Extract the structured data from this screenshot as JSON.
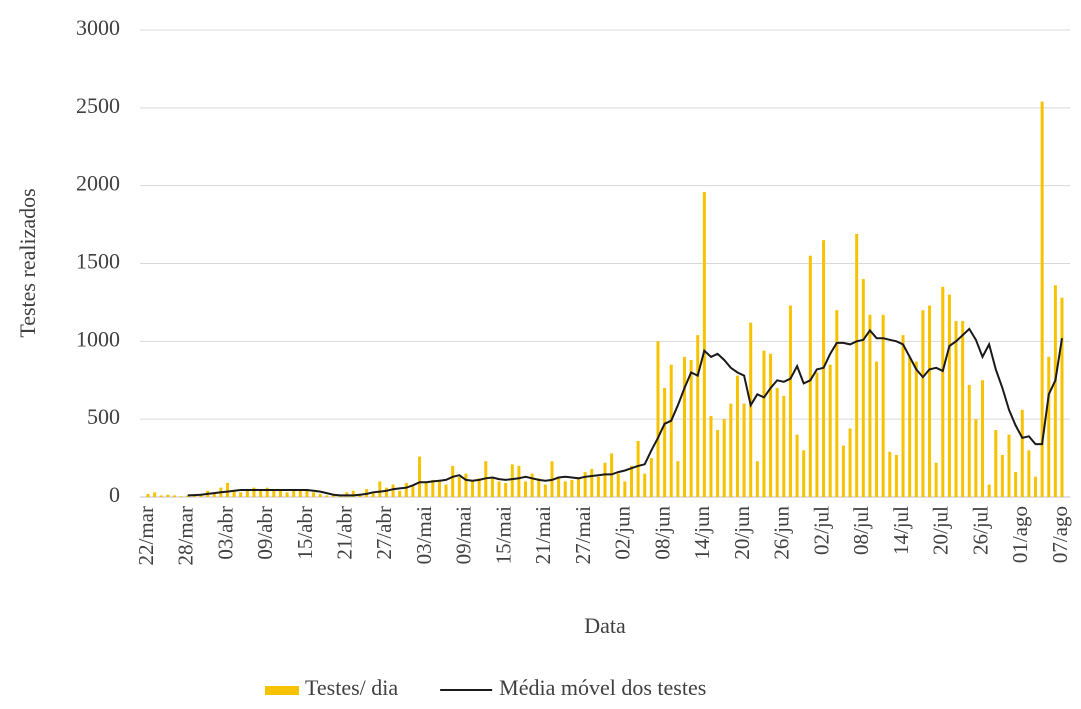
{
  "chart_data": {
    "type": "bar",
    "y_label": "Testes realizados",
    "x_label": "Data",
    "categories": [
      "22/mar",
      null,
      null,
      null,
      null,
      null,
      "28/mar",
      null,
      null,
      null,
      null,
      null,
      "03/abr",
      null,
      null,
      null,
      null,
      null,
      "09/abr",
      null,
      null,
      null,
      null,
      null,
      "15/abr",
      null,
      null,
      null,
      null,
      null,
      "21/abr",
      null,
      null,
      null,
      null,
      null,
      "27/abr",
      null,
      null,
      null,
      null,
      null,
      "03/mai",
      null,
      null,
      null,
      null,
      null,
      "09/mai",
      null,
      null,
      null,
      null,
      null,
      "15/mai",
      null,
      null,
      null,
      null,
      null,
      "21/mai",
      null,
      null,
      null,
      null,
      null,
      "27/mai",
      null,
      null,
      null,
      null,
      null,
      "02/jun",
      null,
      null,
      null,
      null,
      null,
      "08/jun",
      null,
      null,
      null,
      null,
      null,
      "14/jun",
      null,
      null,
      null,
      null,
      null,
      "20/jun",
      null,
      null,
      null,
      null,
      null,
      "26/jun",
      null,
      null,
      null,
      null,
      null,
      "02/jul",
      null,
      null,
      null,
      null,
      null,
      "08/jul",
      null,
      null,
      null,
      null,
      null,
      "14/jul",
      null,
      null,
      null,
      null,
      null,
      "20/jul",
      null,
      null,
      null,
      null,
      null,
      "26/jul",
      null,
      null,
      null,
      null,
      null,
      "01/ago",
      null,
      null,
      null,
      null,
      null,
      "07/ago"
    ],
    "series": [
      {
        "name": "Testes/ dia",
        "type": "bar",
        "color": "#f7c200",
        "values": [
          20,
          30,
          10,
          15,
          10,
          5,
          10,
          15,
          20,
          40,
          30,
          60,
          90,
          40,
          30,
          50,
          60,
          40,
          60,
          50,
          40,
          30,
          50,
          40,
          40,
          30,
          20,
          10,
          10,
          5,
          30,
          40,
          20,
          50,
          30,
          100,
          60,
          80,
          40,
          90,
          70,
          260,
          90,
          110,
          100,
          80,
          200,
          130,
          150,
          100,
          120,
          230,
          130,
          100,
          90,
          210,
          200,
          100,
          150,
          120,
          80,
          230,
          130,
          100,
          110,
          120,
          160,
          180,
          130,
          220,
          280,
          150,
          100,
          200,
          360,
          150,
          250,
          1000,
          700,
          850,
          230,
          900,
          880,
          1040,
          1960,
          520,
          430,
          500,
          600,
          780,
          600,
          1120,
          230,
          940,
          920,
          700,
          650,
          1230,
          400,
          300,
          1550,
          800,
          1650,
          850,
          1200,
          330,
          440,
          1690,
          1400,
          1170,
          870,
          1170,
          290,
          270,
          1040,
          900,
          870,
          1200,
          1230,
          220,
          1350,
          1300,
          1130,
          1130,
          720,
          500,
          750,
          80,
          430,
          270,
          400,
          160,
          560,
          300,
          130,
          2540,
          900,
          1360,
          1280
        ]
      },
      {
        "name": "Média móvel dos testes",
        "type": "line",
        "color": "#1a1a1a",
        "values": [
          null,
          null,
          null,
          null,
          null,
          null,
          10,
          12,
          15,
          20,
          25,
          30,
          35,
          40,
          45,
          45,
          45,
          45,
          45,
          45,
          45,
          45,
          45,
          45,
          45,
          40,
          35,
          25,
          15,
          10,
          10,
          10,
          15,
          20,
          30,
          35,
          40,
          50,
          55,
          60,
          75,
          95,
          95,
          100,
          105,
          110,
          130,
          140,
          110,
          105,
          110,
          120,
          125,
          115,
          110,
          115,
          120,
          130,
          120,
          110,
          105,
          110,
          125,
          130,
          125,
          120,
          130,
          135,
          140,
          145,
          145,
          160,
          170,
          185,
          200,
          210,
          300,
          380,
          470,
          490,
          590,
          700,
          800,
          780,
          940,
          900,
          920,
          880,
          830,
          800,
          780,
          590,
          660,
          640,
          700,
          750,
          740,
          760,
          840,
          730,
          750,
          820,
          830,
          920,
          990,
          990,
          980,
          1000,
          1010,
          1070,
          1020,
          1020,
          1010,
          1000,
          980,
          900,
          820,
          770,
          820,
          830,
          810,
          970,
          1000,
          1040,
          1080,
          1010,
          900,
          980,
          820,
          700,
          560,
          460,
          380,
          390,
          340,
          340,
          660,
          750,
          1020
        ]
      }
    ],
    "ylim": [
      0,
      3000
    ],
    "yticks": [
      0,
      500,
      1000,
      1500,
      2000,
      2500,
      3000
    ],
    "grid": true,
    "legend": "bottom"
  }
}
